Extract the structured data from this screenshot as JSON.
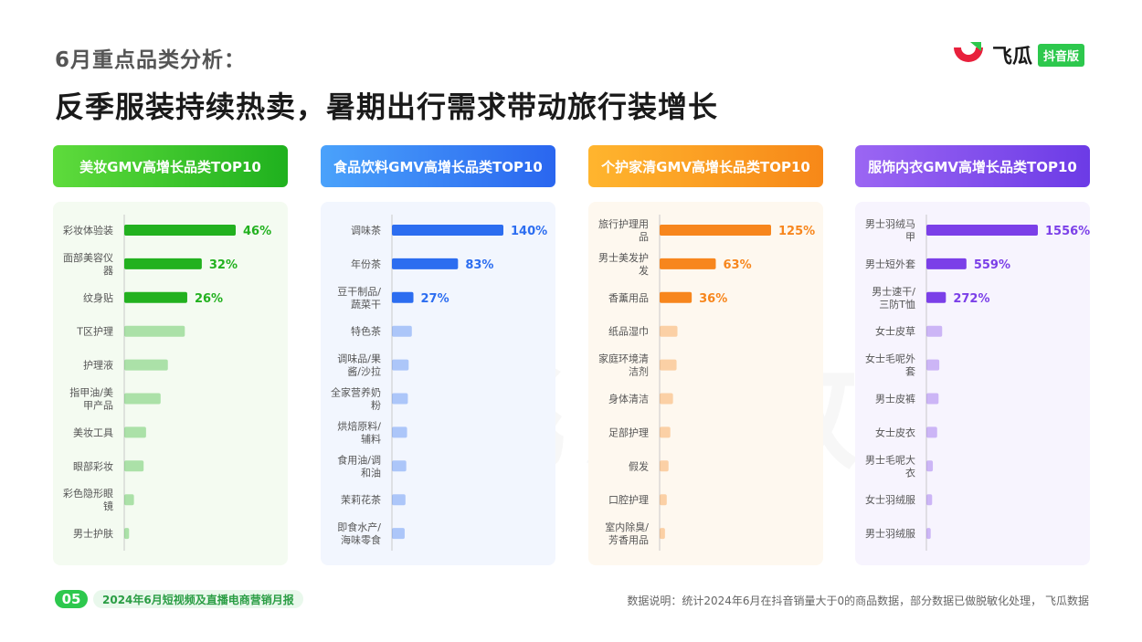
{
  "header": {
    "subtitle": "6月重点品类分析：",
    "headline": "反季服装持续热卖，暑期出行需求带动旅行装增长"
  },
  "logo": {
    "text": "飞瓜",
    "badge": "抖音版"
  },
  "watermark": "飞瓜数据",
  "footer": {
    "page_number": "05",
    "report_title": "2024年6月短视频及直播电商营销月报",
    "note": "数据说明：统计2024年6月在抖音销量大于0的商品数据，部分数据已做脱敏化处理， 飞瓜数据"
  },
  "colors": {
    "beauty": "#22b11f",
    "food": "#2c6df0",
    "care": "#f7861d",
    "apparel": "#7b3fe8"
  },
  "chart_data": [
    {
      "type": "bar",
      "title": "美妆GMV高增长品类TOP10",
      "categories": [
        "彩妆体验装",
        "面部美容仪器",
        "纹身贴",
        "T区护理",
        "护理液",
        "指甲油/美甲产品",
        "美妆工具",
        "眼部彩妆",
        "彩色隐形眼镜",
        "男士护肤"
      ],
      "series": [
        {
          "values": [
            46,
            32,
            26,
            25,
            18,
            15,
            9,
            8,
            4,
            2
          ]
        }
      ],
      "data_labels": [
        "46%",
        "32%",
        "26%",
        "",
        "",
        "",
        "",
        "",
        "",
        ""
      ]
    },
    {
      "type": "bar",
      "title": "食品饮料GMV高增长品类TOP10",
      "categories": [
        "调味茶",
        "年份茶",
        "豆干制品/蔬菜干",
        "特色茶",
        "调味品/果酱/沙拉",
        "全家营养奶粉",
        "烘焙原料/辅料",
        "食用油/调和油",
        "茉莉花茶",
        "即食水产/海味零食"
      ],
      "series": [
        {
          "values": [
            140,
            83,
            27,
            25,
            21,
            20,
            19,
            18,
            17,
            16
          ]
        }
      ],
      "data_labels": [
        "140%",
        "83%",
        "27%",
        "",
        "",
        "",
        "",
        "",
        "",
        ""
      ]
    },
    {
      "type": "bar",
      "title": "个护家清GMV高增长品类TOP10",
      "categories": [
        "旅行护理用品",
        "男士美发护发",
        "香薰用品",
        "纸品湿巾",
        "家庭环境清洁剂",
        "身体清洁",
        "足部护理",
        "假发",
        "口腔护理",
        "室内除臭/芳香用品"
      ],
      "series": [
        {
          "values": [
            125,
            63,
            36,
            20,
            19,
            15,
            12,
            10,
            8,
            6
          ]
        }
      ],
      "data_labels": [
        "125%",
        "63%",
        "36%",
        "",
        "",
        "",
        "",
        "",
        "",
        ""
      ]
    },
    {
      "type": "bar",
      "title": "服饰内衣GMV高增长品类TOP10",
      "categories": [
        "男士羽绒马甲",
        "男士短外套",
        "男士速干/三防T恤",
        "女士皮草",
        "女士毛呢外套",
        "男士皮裤",
        "女士皮衣",
        "男士毛呢大衣",
        "女士羽绒服",
        "男士羽绒服"
      ],
      "series": [
        {
          "values": [
            1556,
            559,
            272,
            220,
            180,
            170,
            150,
            90,
            80,
            60
          ]
        }
      ],
      "data_labels": [
        "1556%",
        "559%",
        "272%",
        "",
        "",
        "",
        "",
        "",
        "",
        ""
      ]
    }
  ]
}
